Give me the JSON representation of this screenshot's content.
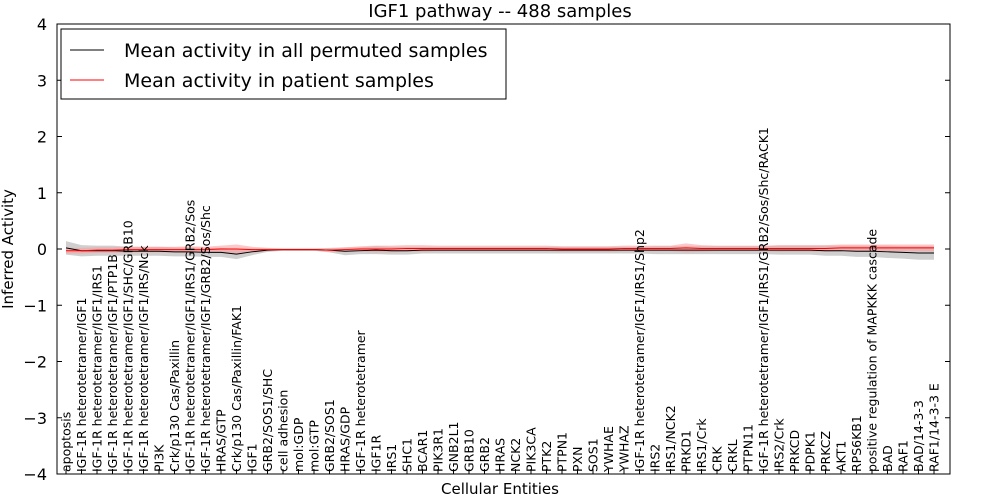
{
  "chart_data": {
    "type": "line",
    "title": "IGF1 pathway -- 488 samples",
    "xlabel": "Cellular Entities",
    "ylabel": "Inferred Activity",
    "ylim": [
      -4,
      4
    ],
    "yticks": [
      4,
      3,
      2,
      1,
      0,
      -1,
      -2,
      -3,
      -4
    ],
    "ytick_labels": [
      "4",
      "3",
      "2",
      "1",
      "0",
      "−1",
      "−2",
      "−3",
      "−4"
    ],
    "legend_position": "top-left",
    "categories": [
      "apoptosis",
      "IGF-1R heterotetramer/IGF1",
      "IGF-1R heterotetramer/IGF1/IRS1",
      "IGF-1R heterotetramer/IGF1/PTP1B",
      "IGF-1R heterotetramer/IGF1/SHC/GRB10",
      "IGF-1R heterotetramer/IGF1/IRS/Nck",
      "PI3K",
      "Crk/p130 Cas/Paxillin",
      "IGF-1R heterotetramer/IGF1/IRS1/GRB2/Sos",
      "IGF-1R heterotetramer/IGF1/GRB2/Sos/Shc",
      "HRAS/GTP",
      "Crk/p130 Cas/Paxillin/FAK1",
      "IGF1",
      "GRB2/SOS1/SHC",
      "cell adhesion",
      "mol:GDP",
      "mol:GTP",
      "GRB2/SOS1",
      "HRAS/GDP",
      "IGF-1R heterotetramer",
      "IGF1R",
      "IRS1",
      "SHC1",
      "BCAR1",
      "PIK3R1",
      "GNB2L1",
      "GRB10",
      "GRB2",
      "HRAS",
      "NCK2",
      "PIK3CA",
      "PTK2",
      "PTPN1",
      "PXN",
      "SOS1",
      "YWHAE",
      "YWHAZ",
      "IGF-1R heterotetramer/IGF1/IRS1/Shp2",
      "IRS2",
      "IRS1/NCK2",
      "PRKD1",
      "IRS1/Crk",
      "CRK",
      "CRKL",
      "PTPN11",
      "IGF-1R heterotetramer/IGF1/IRS1/GRB2/Sos/Shc/RACK1",
      "IRS2/Crk",
      "PRKCD",
      "PDPK1",
      "PRKCZ",
      "AKT1",
      "RPS6KB1",
      "positive regulation of MAPKKK cascade",
      "BAD",
      "RAF1",
      "BAD/14-3-3",
      "RAF1/14-3-3 E"
    ],
    "series": [
      {
        "name": "Mean activity in all permuted samples",
        "color": "#000000",
        "band_color": "#bbbbbb",
        "values": [
          0.02,
          -0.03,
          -0.03,
          -0.03,
          -0.04,
          -0.04,
          -0.04,
          -0.05,
          -0.05,
          -0.06,
          -0.06,
          -0.09,
          -0.05,
          -0.02,
          -0.01,
          -0.01,
          -0.01,
          -0.02,
          -0.04,
          -0.03,
          -0.02,
          -0.03,
          -0.03,
          -0.02,
          -0.02,
          -0.02,
          -0.02,
          -0.02,
          -0.02,
          -0.02,
          -0.02,
          -0.02,
          -0.02,
          -0.02,
          -0.02,
          -0.02,
          -0.02,
          -0.02,
          -0.02,
          -0.02,
          -0.02,
          -0.02,
          -0.02,
          -0.02,
          -0.02,
          -0.02,
          -0.02,
          -0.02,
          -0.02,
          -0.03,
          -0.03,
          -0.04,
          -0.04,
          -0.05,
          -0.06,
          -0.07,
          -0.07
        ],
        "band_halfwidth": [
          0.12,
          0.1,
          0.09,
          0.09,
          0.08,
          0.08,
          0.08,
          0.08,
          0.08,
          0.08,
          0.08,
          0.09,
          0.06,
          0.03,
          0.02,
          0.02,
          0.02,
          0.04,
          0.07,
          0.06,
          0.07,
          0.07,
          0.07,
          0.06,
          0.06,
          0.06,
          0.06,
          0.06,
          0.06,
          0.06,
          0.06,
          0.06,
          0.06,
          0.06,
          0.06,
          0.06,
          0.06,
          0.06,
          0.07,
          0.07,
          0.07,
          0.07,
          0.07,
          0.07,
          0.07,
          0.07,
          0.08,
          0.08,
          0.08,
          0.09,
          0.09,
          0.1,
          0.1,
          0.11,
          0.11,
          0.12,
          0.12
        ]
      },
      {
        "name": "Mean activity in patient samples",
        "color": "#ff0000",
        "band_color": "#ff9999",
        "values": [
          -0.03,
          -0.03,
          -0.02,
          -0.02,
          -0.01,
          -0.01,
          -0.01,
          -0.01,
          -0.01,
          -0.01,
          0.0,
          0.0,
          -0.01,
          -0.01,
          -0.01,
          -0.01,
          -0.01,
          -0.02,
          -0.01,
          0.0,
          0.0,
          0.0,
          0.01,
          0.01,
          0.01,
          0.01,
          0.01,
          0.01,
          0.01,
          0.01,
          0.01,
          0.01,
          0.0,
          0.0,
          0.0,
          0.0,
          0.01,
          0.01,
          0.01,
          0.01,
          0.02,
          0.01,
          0.01,
          0.01,
          0.01,
          0.01,
          0.01,
          0.01,
          0.01,
          0.01,
          0.02,
          0.02,
          0.02,
          0.02,
          0.02,
          0.02,
          0.02
        ],
        "band_halfwidth": [
          0.05,
          0.05,
          0.05,
          0.05,
          0.05,
          0.05,
          0.05,
          0.05,
          0.06,
          0.05,
          0.06,
          0.08,
          0.05,
          0.03,
          0.02,
          0.02,
          0.02,
          0.03,
          0.04,
          0.05,
          0.06,
          0.06,
          0.06,
          0.06,
          0.05,
          0.05,
          0.05,
          0.05,
          0.05,
          0.05,
          0.05,
          0.05,
          0.05,
          0.05,
          0.05,
          0.05,
          0.05,
          0.05,
          0.05,
          0.05,
          0.08,
          0.06,
          0.05,
          0.05,
          0.05,
          0.05,
          0.06,
          0.06,
          0.06,
          0.06,
          0.06,
          0.06,
          0.06,
          0.06,
          0.06,
          0.06,
          0.06
        ]
      }
    ]
  }
}
